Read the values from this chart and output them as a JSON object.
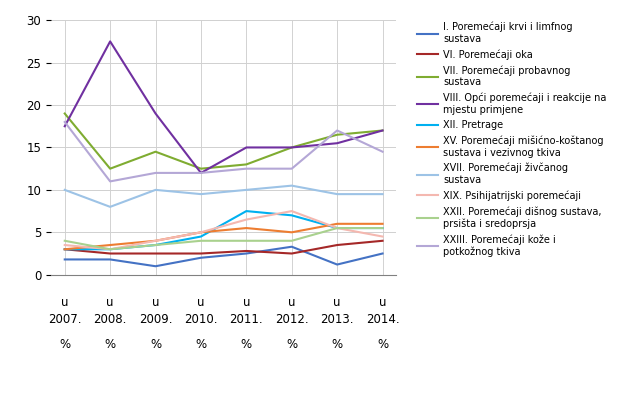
{
  "x": [
    0,
    1,
    2,
    3,
    4,
    5,
    6,
    7
  ],
  "series": [
    {
      "label": "I. Poremećaji krvi i limfnog\nsustava",
      "color": "#4472c4",
      "values": [
        1.8,
        1.8,
        1.0,
        2.0,
        2.5,
        3.3,
        1.2,
        2.5
      ]
    },
    {
      "label": "VI. Poremećaji oka",
      "color": "#a52828",
      "values": [
        3.0,
        2.5,
        2.5,
        2.5,
        2.8,
        2.5,
        3.5,
        4.0
      ]
    },
    {
      "label": "VII. Poremećaji probavnog\nsustava",
      "color": "#7fac31",
      "values": [
        19.0,
        12.5,
        14.5,
        12.5,
        13.0,
        15.0,
        16.5,
        17.0
      ]
    },
    {
      "label": "VIII. Opći poremećaji i reakcije na\nmjestu primjene",
      "color": "#7030a0",
      "values": [
        17.5,
        27.5,
        19.0,
        12.0,
        15.0,
        15.0,
        15.5,
        17.0
      ]
    },
    {
      "label": "XII. Pretrage",
      "color": "#00b0f0",
      "values": [
        3.0,
        3.0,
        3.5,
        4.5,
        7.5,
        7.0,
        5.5,
        5.5
      ]
    },
    {
      "label": "XV. Poremećaji mišićno-koštanog\nsustava i vezivnog tkiva",
      "color": "#ed7d31",
      "values": [
        3.0,
        3.5,
        4.0,
        5.0,
        5.5,
        5.0,
        6.0,
        6.0
      ]
    },
    {
      "label": "XVII. Poremećaji živčanog\nsustava",
      "color": "#9dc3e6",
      "values": [
        10.0,
        8.0,
        10.0,
        9.5,
        10.0,
        10.5,
        9.5,
        9.5
      ]
    },
    {
      "label": "XIX. Psihijatrijski poremećaji",
      "color": "#f4b8b0",
      "values": [
        3.5,
        3.0,
        4.0,
        5.0,
        6.5,
        7.5,
        5.5,
        4.5
      ]
    },
    {
      "label": "XXII. Poremećaji dišnog sustava,\nprsišta i sredoprsja",
      "color": "#a9d18e",
      "values": [
        4.0,
        3.0,
        3.5,
        4.0,
        4.0,
        4.0,
        5.5,
        5.5
      ]
    },
    {
      "label": "XXIII. Poremećaji kože i\npotkožnog tkiva",
      "color": "#b4a7d6",
      "values": [
        18.0,
        11.0,
        12.0,
        12.0,
        12.5,
        12.5,
        17.0,
        14.5
      ]
    }
  ],
  "ylim": [
    0,
    30
  ],
  "yticks": [
    0,
    5,
    10,
    15,
    20,
    25,
    30
  ],
  "tick_years": [
    "2007.",
    "2008.",
    "2009.",
    "2010.",
    "2011.",
    "2012.",
    "2013.",
    "2014."
  ]
}
